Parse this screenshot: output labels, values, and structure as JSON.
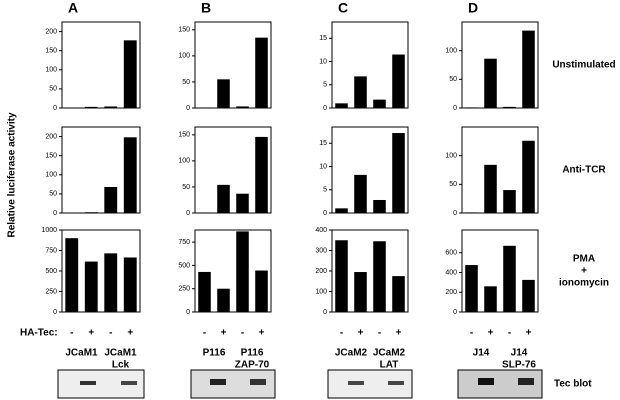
{
  "y_label": "Relative luciferase activity",
  "ha_label": "HA-Tec:",
  "blot_label": "Tec blot",
  "rows": [
    [
      "Unstimulated"
    ],
    [
      "Anti-TCR"
    ],
    [
      "PMA",
      "+",
      "ionomycin"
    ]
  ],
  "panels": [
    {
      "letter": "A",
      "groups": [
        [
          "JCaM1"
        ],
        [
          "JCaM1",
          "Lck"
        ]
      ]
    },
    {
      "letter": "B",
      "groups": [
        [
          "P116"
        ],
        [
          "P116",
          "ZAP-70"
        ]
      ]
    },
    {
      "letter": "C",
      "groups": [
        [
          "JCaM2"
        ],
        [
          "JCaM2",
          "LAT"
        ]
      ]
    },
    {
      "letter": "D",
      "groups": [
        [
          "J14"
        ],
        [
          "J14",
          "SLP-76"
        ]
      ]
    }
  ],
  "chart_data": [
    {
      "type": "bar",
      "values": [
        1,
        3,
        4,
        177
      ],
      "ylim": [
        0,
        225
      ],
      "yticks": [
        0,
        50,
        100,
        150,
        200
      ],
      "color": "#000000"
    },
    {
      "type": "bar",
      "values": [
        1,
        55,
        3,
        135
      ],
      "ylim": [
        0,
        165
      ],
      "yticks": [
        0,
        50,
        100,
        150
      ],
      "color": "#000000"
    },
    {
      "type": "bar",
      "values": [
        1,
        6.8,
        1.8,
        11.5
      ],
      "ylim": [
        0,
        18.5
      ],
      "yticks": [
        0,
        5,
        10,
        15
      ],
      "color": "#000000"
    },
    {
      "type": "bar",
      "values": [
        1,
        86,
        2,
        135
      ],
      "ylim": [
        0,
        150
      ],
      "yticks": [
        0,
        50,
        100
      ],
      "color": "#000000"
    },
    {
      "type": "bar",
      "values": [
        0,
        2,
        68,
        198
      ],
      "ylim": [
        0,
        225
      ],
      "yticks": [
        0,
        50,
        100,
        150,
        200
      ],
      "color": "#000000"
    },
    {
      "type": "bar",
      "values": [
        1,
        54,
        37,
        146
      ],
      "ylim": [
        0,
        165
      ],
      "yticks": [
        0,
        50,
        100,
        150
      ],
      "color": "#000000"
    },
    {
      "type": "bar",
      "values": [
        1,
        8.2,
        2.8,
        17.2
      ],
      "ylim": [
        0,
        18.5
      ],
      "yticks": [
        0,
        5,
        10,
        15
      ],
      "color": "#000000"
    },
    {
      "type": "bar",
      "values": [
        1,
        84,
        40,
        126
      ],
      "ylim": [
        0,
        150
      ],
      "yticks": [
        0,
        50,
        100
      ],
      "color": "#000000"
    },
    {
      "type": "bar",
      "categories": [
        "-",
        "+",
        "-",
        "+"
      ],
      "values": [
        900,
        615,
        715,
        665
      ],
      "ylim": [
        0,
        1000
      ],
      "yticks": [
        0,
        250,
        500,
        750,
        1000
      ],
      "color": "#000000"
    },
    {
      "type": "bar",
      "categories": [
        "-",
        "+",
        "-",
        "+"
      ],
      "values": [
        430,
        250,
        865,
        445
      ],
      "ylim": [
        0,
        880
      ],
      "yticks": [
        0,
        250,
        500,
        750
      ],
      "color": "#000000"
    },
    {
      "type": "bar",
      "categories": [
        "-",
        "+",
        "-",
        "+"
      ],
      "values": [
        350,
        195,
        345,
        175
      ],
      "ylim": [
        0,
        400
      ],
      "yticks": [
        0,
        100,
        200,
        300,
        400
      ],
      "color": "#000000"
    },
    {
      "type": "bar",
      "categories": [
        "-",
        "+",
        "-",
        "+"
      ],
      "values": [
        475,
        260,
        670,
        325
      ],
      "ylim": [
        0,
        830
      ],
      "yticks": [
        0,
        200,
        400,
        600
      ],
      "color": "#000000"
    }
  ]
}
